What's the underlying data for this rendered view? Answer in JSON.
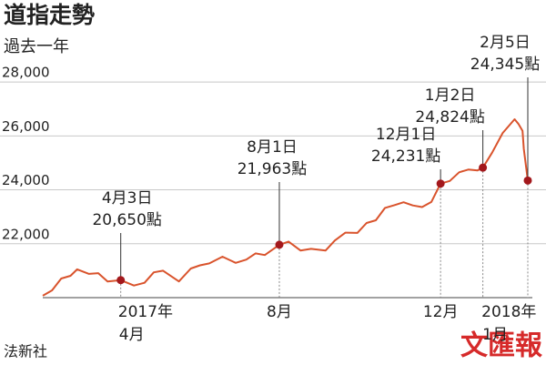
{
  "chart_data": {
    "type": "line",
    "title": "道指走勢",
    "subtitle": "過去一年",
    "source": "法新社",
    "watermark": "文匯報",
    "color": "#d9532c",
    "marker_color": "#a3181c",
    "grid": true,
    "x": [
      "2017-02-03",
      "2017-02-10",
      "2017-02-17",
      "2017-02-24",
      "2017-03-01",
      "2017-03-10",
      "2017-03-17",
      "2017-03-24",
      "2017-04-03",
      "2017-04-13",
      "2017-04-21",
      "2017-04-28",
      "2017-05-05",
      "2017-05-17",
      "2017-05-26",
      "2017-06-02",
      "2017-06-09",
      "2017-06-19",
      "2017-06-29",
      "2017-07-07",
      "2017-07-14",
      "2017-07-21",
      "2017-08-01",
      "2017-08-08",
      "2017-08-17",
      "2017-08-25",
      "2017-09-05",
      "2017-09-12",
      "2017-09-20",
      "2017-09-29",
      "2017-10-06",
      "2017-10-13",
      "2017-10-20",
      "2017-10-27",
      "2017-11-03",
      "2017-11-10",
      "2017-11-17",
      "2017-11-24",
      "2017-12-01",
      "2017-12-08",
      "2017-12-15",
      "2017-12-22",
      "2017-12-29",
      "2018-01-02",
      "2018-01-09",
      "2018-01-17",
      "2018-01-26",
      "2018-01-29",
      "2018-02-01",
      "2018-02-02",
      "2018-02-05"
    ],
    "values": [
      20070,
      20270,
      20710,
      20810,
      21050,
      20880,
      20910,
      20600,
      20650,
      20450,
      20550,
      20940,
      21000,
      20600,
      21080,
      21200,
      21270,
      21520,
      21290,
      21410,
      21640,
      21580,
      21963,
      22080,
      21750,
      21810,
      21750,
      22120,
      22410,
      22400,
      22770,
      22870,
      23330,
      23430,
      23540,
      23420,
      23360,
      23550,
      24231,
      24330,
      24650,
      24750,
      24720,
      24824,
      25380,
      26110,
      26620,
      26440,
      26190,
      25520,
      24345
    ],
    "xlim": [
      "2017-02-03",
      "2018-02-05"
    ],
    "ylim": [
      20000,
      29000
    ],
    "yticks": [
      {
        "value": 22000,
        "label": "22,000"
      },
      {
        "value": 24000,
        "label": "24,000"
      },
      {
        "value": 26000,
        "label": "26,000"
      },
      {
        "value": 28000,
        "label": "28,000"
      }
    ],
    "xticks": [
      {
        "value": "2017-04-01",
        "year": "2017年",
        "label": "4月"
      },
      {
        "value": "2017-08-01",
        "label": "8月"
      },
      {
        "value": "2017-12-01",
        "label": "12月"
      },
      {
        "value": "2018-01-01",
        "year": "2018年",
        "label": "1月"
      }
    ],
    "annotations": [
      {
        "x": "2017-04-03",
        "label": "4月3日",
        "value_label": "20,650點"
      },
      {
        "x": "2017-08-01",
        "label": "8月1日",
        "value_label": "21,963點"
      },
      {
        "x": "2017-12-01",
        "label": "12月1日",
        "value_label": "24,231點"
      },
      {
        "x": "2018-01-02",
        "label": "1月2日",
        "value_label": "24,824點"
      },
      {
        "x": "2018-02-05",
        "label": "2月5日",
        "value_label": "24,345點"
      }
    ]
  }
}
